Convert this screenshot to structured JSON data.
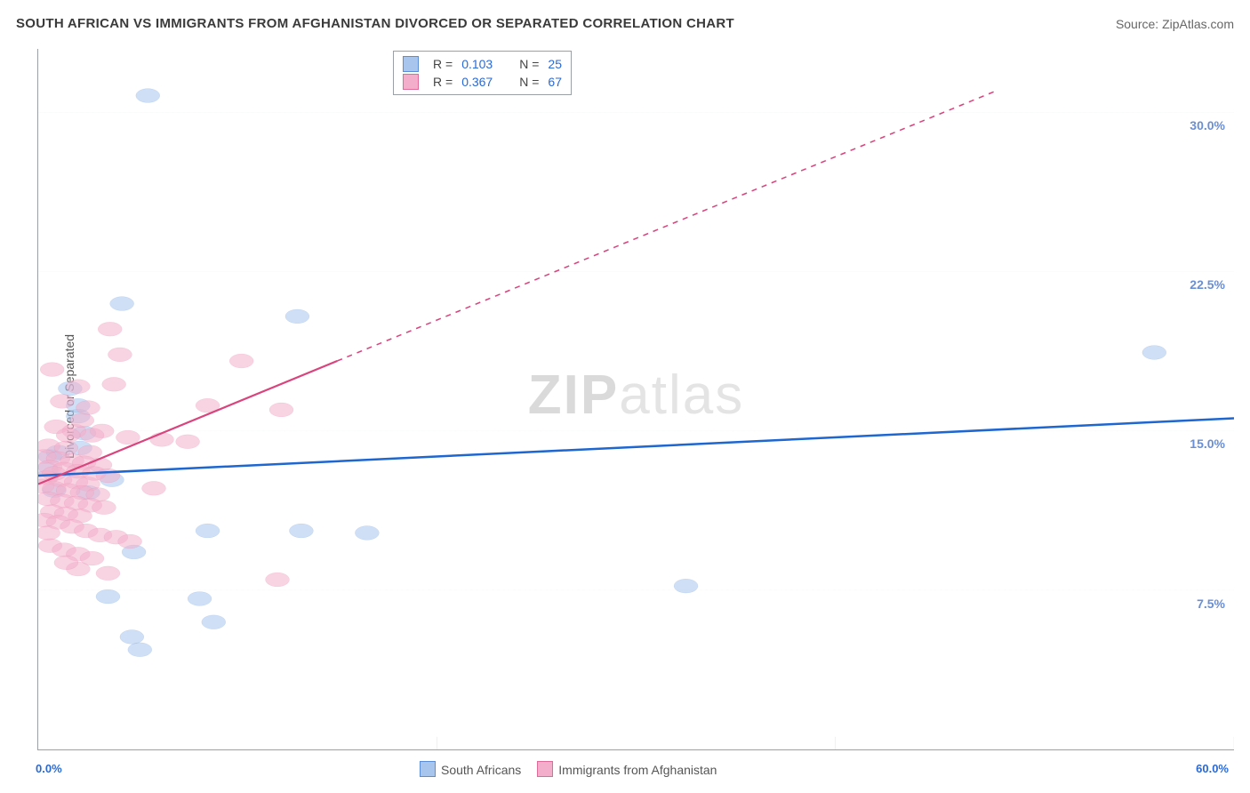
{
  "title": "SOUTH AFRICAN VS IMMIGRANTS FROM AFGHANISTAN DIVORCED OR SEPARATED CORRELATION CHART",
  "title_fontsize": 15,
  "title_color": "#3a3a3a",
  "source_label": "Source: ZipAtlas.com",
  "background_color": "#ffffff",
  "axis_color": "#9aa0a6",
  "tick_label_color": "#6a8fd4",
  "y_axis_label": "Divorced or Separated",
  "x_range": [
    0,
    60
  ],
  "y_range": [
    0,
    33
  ],
  "x_origin_label": "0.0%",
  "x_max_label": "60.0%",
  "y_gridlines": [
    {
      "value": 7.5,
      "label": "7.5%"
    },
    {
      "value": 15.0,
      "label": "15.0%"
    },
    {
      "value": 22.5,
      "label": "22.5%"
    },
    {
      "value": 30.0,
      "label": "30.0%"
    }
  ],
  "x_tick_positions": [
    20,
    40,
    60
  ],
  "grid_color": "#cfd2d6",
  "grid_dash": "4,4",
  "watermark": {
    "text_bold": "ZIP",
    "text_light": "atlas"
  },
  "series": [
    {
      "id": "south_africans",
      "label": "South Africans",
      "fill": "#a7c5ed",
      "stroke": "#5b8ed6",
      "fill_opacity": 0.55,
      "marker_radius": 8,
      "trend": {
        "x1": 0,
        "y1": 12.9,
        "x2": 60,
        "y2": 15.6,
        "color": "#1e66d0",
        "width": 2.5,
        "dash_x_end": 60
      },
      "R": "0.103",
      "N": "25",
      "points": [
        [
          5.5,
          30.8
        ],
        [
          4.2,
          21.0
        ],
        [
          13.0,
          20.4
        ],
        [
          56.0,
          18.7
        ],
        [
          2.0,
          15.7
        ],
        [
          2.3,
          14.9
        ],
        [
          2.1,
          14.2
        ],
        [
          0.6,
          13.8
        ],
        [
          3.7,
          12.7
        ],
        [
          1.0,
          14.0
        ],
        [
          0.4,
          13.2
        ],
        [
          8.5,
          10.3
        ],
        [
          13.2,
          10.3
        ],
        [
          16.5,
          10.2
        ],
        [
          4.8,
          9.3
        ],
        [
          32.5,
          7.7
        ],
        [
          0.8,
          12.2
        ],
        [
          8.1,
          7.1
        ],
        [
          3.5,
          7.2
        ],
        [
          2.5,
          12.1
        ],
        [
          8.8,
          6.0
        ],
        [
          4.7,
          5.3
        ],
        [
          5.1,
          4.7
        ],
        [
          1.6,
          17.0
        ],
        [
          2.0,
          16.2
        ]
      ]
    },
    {
      "id": "immigrants_afghanistan",
      "label": "Immigrants from Afghanistan",
      "fill": "#f2aecb",
      "stroke": "#e06a9a",
      "fill_opacity": 0.55,
      "marker_radius": 8,
      "trend": {
        "x1": 0,
        "y1": 12.5,
        "x2": 15,
        "y2": 18.3,
        "dash_x_end": 48,
        "dash_y_end": 31.0,
        "color": "#d9447d",
        "width": 2.2
      },
      "R": "0.367",
      "N": "67",
      "points": [
        [
          3.6,
          19.8
        ],
        [
          4.1,
          18.6
        ],
        [
          0.7,
          17.9
        ],
        [
          2.0,
          17.1
        ],
        [
          3.8,
          17.2
        ],
        [
          10.2,
          18.3
        ],
        [
          8.5,
          16.2
        ],
        [
          12.2,
          16.0
        ],
        [
          1.2,
          16.4
        ],
        [
          2.5,
          16.1
        ],
        [
          0.9,
          15.2
        ],
        [
          1.8,
          15.0
        ],
        [
          3.2,
          15.0
        ],
        [
          2.7,
          14.8
        ],
        [
          4.5,
          14.7
        ],
        [
          6.2,
          14.6
        ],
        [
          7.5,
          14.5
        ],
        [
          0.5,
          14.3
        ],
        [
          1.4,
          14.2
        ],
        [
          2.6,
          14.0
        ],
        [
          0.3,
          13.8
        ],
        [
          1.0,
          13.7
        ],
        [
          1.7,
          13.6
        ],
        [
          2.3,
          13.5
        ],
        [
          3.1,
          13.4
        ],
        [
          0.6,
          13.3
        ],
        [
          1.3,
          13.2
        ],
        [
          2.0,
          13.1
        ],
        [
          2.8,
          13.0
        ],
        [
          3.5,
          12.9
        ],
        [
          0.4,
          12.8
        ],
        [
          1.1,
          12.7
        ],
        [
          1.9,
          12.6
        ],
        [
          2.5,
          12.5
        ],
        [
          0.2,
          12.4
        ],
        [
          0.8,
          12.3
        ],
        [
          1.5,
          12.2
        ],
        [
          2.2,
          12.1
        ],
        [
          3.0,
          12.0
        ],
        [
          5.8,
          12.3
        ],
        [
          0.5,
          11.8
        ],
        [
          1.2,
          11.7
        ],
        [
          1.9,
          11.6
        ],
        [
          2.6,
          11.5
        ],
        [
          3.3,
          11.4
        ],
        [
          0.7,
          11.2
        ],
        [
          1.4,
          11.1
        ],
        [
          2.1,
          11.0
        ],
        [
          0.3,
          10.8
        ],
        [
          1.0,
          10.7
        ],
        [
          1.7,
          10.5
        ],
        [
          2.4,
          10.3
        ],
        [
          3.1,
          10.1
        ],
        [
          3.9,
          10.0
        ],
        [
          4.6,
          9.8
        ],
        [
          0.6,
          9.6
        ],
        [
          0.5,
          10.2
        ],
        [
          1.3,
          9.4
        ],
        [
          2.0,
          9.2
        ],
        [
          2.7,
          9.0
        ],
        [
          2.0,
          8.5
        ],
        [
          3.5,
          8.3
        ],
        [
          1.4,
          8.8
        ],
        [
          12.0,
          8.0
        ],
        [
          0.8,
          13.0
        ],
        [
          1.5,
          14.8
        ],
        [
          2.2,
          15.5
        ]
      ]
    }
  ],
  "top_legend": [
    {
      "swatch_fill": "#a7c5ed",
      "swatch_stroke": "#5b8ed6",
      "R_label": "R =",
      "R_value": "0.103",
      "N_label": "N =",
      "N_value": "25"
    },
    {
      "swatch_fill": "#f2aecb",
      "swatch_stroke": "#e06a9a",
      "R_label": "R =",
      "R_value": "0.367",
      "N_label": "N =",
      "N_value": "67"
    }
  ],
  "bottom_legend": [
    {
      "swatch_fill": "#a7c5ed",
      "swatch_stroke": "#5b8ed6",
      "label": "South Africans"
    },
    {
      "swatch_fill": "#f2aecb",
      "swatch_stroke": "#e06a9a",
      "label": "Immigrants from Afghanistan"
    }
  ]
}
